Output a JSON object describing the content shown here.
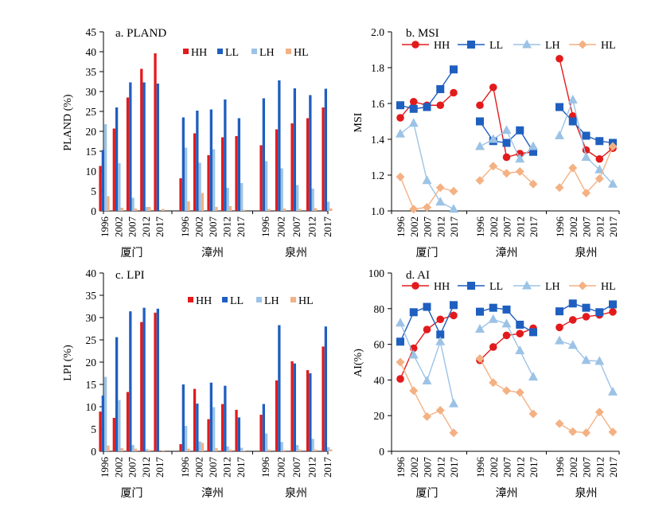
{
  "colors": {
    "HH": "#e31a1c",
    "LL": "#1f5fbf",
    "LH": "#9cc3e6",
    "HL": "#f4b183"
  },
  "legend": [
    "HH",
    "LL",
    "LH",
    "HL"
  ],
  "chart_data": [
    {
      "panel": "a",
      "type": "bar",
      "title": "a. PLAND",
      "ylabel": "PLAND (%)",
      "xlabel": "",
      "ylim": [
        0,
        45
      ],
      "yticks": [
        0,
        5,
        10,
        15,
        20,
        25,
        30,
        35,
        40,
        45
      ],
      "ytick_decimals": 0,
      "groups": [
        "厦门",
        "漳州",
        "泉州"
      ],
      "years": [
        "1996",
        "2002",
        "2007",
        "2012",
        "2017"
      ],
      "series": [
        {
          "name": "HH",
          "values": [
            [
              11.3,
              20.7,
              28.5,
              35.7,
              39.6
            ],
            [
              8.2,
              19.5,
              14.0,
              18.5,
              18.8
            ],
            [
              16.5,
              20.5,
              22.0,
              23.3,
              26.0
            ]
          ]
        },
        {
          "name": "LL",
          "values": [
            [
              15.3,
              26.0,
              32.3,
              32.3,
              32.0
            ],
            [
              23.5,
              25.2,
              25.5,
              28.0,
              23.3
            ],
            [
              28.3,
              32.8,
              30.8,
              29.1,
              30.7
            ]
          ]
        },
        {
          "name": "LH",
          "values": [
            [
              21.8,
              12.0,
              3.3,
              1.0,
              0.0
            ],
            [
              15.9,
              12.1,
              15.5,
              5.8,
              7.0
            ],
            [
              12.5,
              10.7,
              6.5,
              5.6,
              2.3
            ]
          ]
        },
        {
          "name": "HL",
          "values": [
            [
              3.7,
              0.8,
              0.6,
              1.0,
              0.5
            ],
            [
              2.4,
              4.5,
              1.0,
              1.2,
              0.3
            ],
            [
              0.5,
              0.6,
              0.5,
              0.7,
              0.6
            ]
          ]
        }
      ]
    },
    {
      "panel": "b",
      "type": "line",
      "title": "b. MSI",
      "ylabel": "MSI",
      "xlabel": "",
      "ylim": [
        1.0,
        2.0
      ],
      "yticks": [
        1.0,
        1.2,
        1.4,
        1.6,
        1.8,
        2.0
      ],
      "ytick_decimals": 1,
      "groups": [
        "厦门",
        "漳州",
        "泉州"
      ],
      "years": [
        "1996",
        "2002",
        "2007",
        "2012",
        "2017"
      ],
      "series": [
        {
          "name": "HH",
          "values": [
            [
              1.52,
              1.61,
              1.59,
              1.59,
              1.66
            ],
            [
              1.59,
              1.69,
              1.3,
              1.32,
              1.33
            ],
            [
              1.85,
              1.53,
              1.34,
              1.29,
              1.35
            ]
          ]
        },
        {
          "name": "LL",
          "values": [
            [
              1.59,
              1.57,
              1.58,
              1.68,
              1.79
            ],
            [
              1.5,
              1.39,
              1.38,
              1.45,
              1.33
            ],
            [
              1.58,
              1.5,
              1.42,
              1.39,
              1.38
            ]
          ]
        },
        {
          "name": "LH",
          "values": [
            [
              1.43,
              1.49,
              1.17,
              1.05,
              1.01
            ],
            [
              1.36,
              1.4,
              1.45,
              1.29,
              1.36
            ],
            [
              1.42,
              1.62,
              1.3,
              1.23,
              1.15
            ]
          ]
        },
        {
          "name": "HL",
          "values": [
            [
              1.19,
              1.01,
              1.02,
              1.13,
              1.11
            ],
            [
              1.17,
              1.25,
              1.21,
              1.22,
              1.15
            ],
            [
              1.13,
              1.24,
              1.1,
              1.18,
              1.36
            ]
          ]
        }
      ]
    },
    {
      "panel": "c",
      "type": "bar",
      "title": "c. LPI",
      "ylabel": "LPI (%)",
      "xlabel": "",
      "ylim": [
        0,
        40
      ],
      "yticks": [
        0,
        5,
        10,
        15,
        20,
        25,
        30,
        35,
        40
      ],
      "ytick_decimals": 0,
      "groups": [
        "厦门",
        "漳州",
        "泉州"
      ],
      "years": [
        "1996",
        "2002",
        "2007",
        "2012",
        "2017"
      ],
      "series": [
        {
          "name": "HH",
          "values": [
            [
              8.9,
              7.5,
              13.3,
              29.0,
              31.1
            ],
            [
              1.6,
              14.0,
              7.2,
              10.6,
              9.3
            ],
            [
              8.2,
              15.9,
              20.2,
              18.2,
              23.5
            ]
          ]
        },
        {
          "name": "LL",
          "values": [
            [
              12.5,
              25.6,
              31.4,
              32.2,
              32.0
            ],
            [
              15.0,
              10.7,
              15.4,
              14.7,
              7.6
            ],
            [
              10.6,
              28.3,
              19.7,
              17.5,
              28.0
            ]
          ]
        },
        {
          "name": "LH",
          "values": [
            [
              16.7,
              11.5,
              1.4,
              0.5,
              0.0
            ],
            [
              5.7,
              2.2,
              9.9,
              1.1,
              0.8
            ],
            [
              4.0,
              2.1,
              1.4,
              2.8,
              0.9
            ]
          ]
        },
        {
          "name": "HL",
          "values": [
            [
              1.3,
              0.7,
              0.6,
              0.3,
              0.2
            ],
            [
              0.6,
              1.9,
              0.7,
              0.4,
              0.2
            ],
            [
              0.4,
              0.3,
              0.4,
              0.4,
              0.4
            ]
          ]
        }
      ]
    },
    {
      "panel": "d",
      "type": "line",
      "title": "d. AI",
      "ylabel": "AI(%)",
      "xlabel": "",
      "ylim": [
        0,
        100
      ],
      "yticks": [
        0,
        20,
        40,
        60,
        80,
        100
      ],
      "ytick_decimals": 0,
      "groups": [
        "厦门",
        "漳州",
        "泉州"
      ],
      "years": [
        "1996",
        "2002",
        "2007",
        "2012",
        "2017"
      ],
      "series": [
        {
          "name": "HH",
          "values": [
            [
              40.6,
              57.8,
              68.3,
              74.0,
              76.2
            ],
            [
              51.0,
              58.5,
              65.0,
              66.0,
              69.0
            ],
            [
              69.5,
              73.7,
              75.5,
              76.5,
              78.2
            ]
          ]
        },
        {
          "name": "LL",
          "values": [
            [
              61.5,
              78.0,
              81.0,
              65.5,
              82.0
            ],
            [
              78.3,
              80.5,
              79.5,
              71.0,
              66.8
            ],
            [
              78.5,
              82.9,
              80.5,
              78.0,
              82.4
            ]
          ]
        },
        {
          "name": "LH",
          "values": [
            [
              72.0,
              54.0,
              39.5,
              61.5,
              26.7
            ],
            [
              68.5,
              74.0,
              71.5,
              56.5,
              41.7
            ],
            [
              62.0,
              59.5,
              51.0,
              50.5,
              33.3
            ]
          ]
        },
        {
          "name": "HL",
          "values": [
            [
              50.0,
              34.0,
              19.5,
              23.0,
              10.4
            ],
            [
              52.0,
              38.5,
              34.0,
              33.0,
              21.0
            ],
            [
              15.5,
              11.0,
              10.4,
              22.0,
              10.8
            ]
          ]
        }
      ]
    }
  ]
}
